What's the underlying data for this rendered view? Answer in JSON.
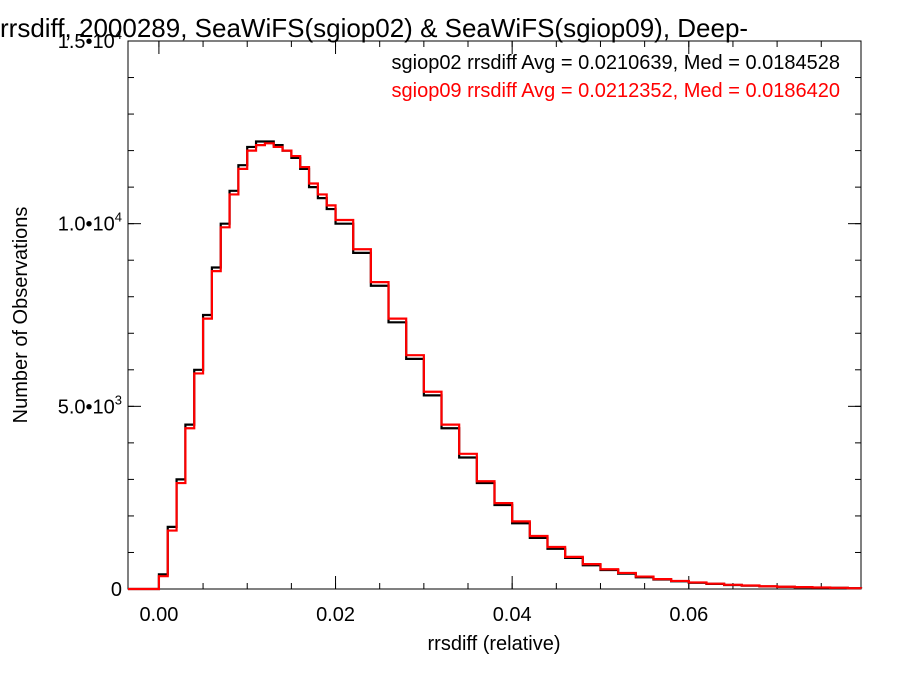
{
  "chart_data": {
    "type": "line",
    "step": true,
    "title": "rrsdiff, 2000289, SeaWiFS(sgiop02) & SeaWiFS(sgiop09), Deep-",
    "xlabel": "rrsdiff (relative)",
    "ylabel": "Number of Observations",
    "xlim": [
      -0.0035,
      0.0795
    ],
    "ylim": [
      0,
      15000
    ],
    "x_ticks": [
      {
        "value": 0.0,
        "label": "0.00"
      },
      {
        "value": 0.02,
        "label": "0.02"
      },
      {
        "value": 0.04,
        "label": "0.04"
      },
      {
        "value": 0.06,
        "label": "0.06"
      }
    ],
    "y_ticks": [
      {
        "value": 0,
        "mantissa": "0",
        "exp": ""
      },
      {
        "value": 5000,
        "mantissa": "5.0•10",
        "exp": "3"
      },
      {
        "value": 10000,
        "mantissa": "1.0•10",
        "exp": "4"
      },
      {
        "value": 15000,
        "mantissa": "1.5•10",
        "exp": "4"
      }
    ],
    "x_minor_step": 0.005,
    "y_minor_step": 1000,
    "grid": false,
    "legend_position": "top-right",
    "series": [
      {
        "name": "sgiop02 rrsdiff Avg = 0.0210639, Med = 0.0184528",
        "color": "#000000",
        "x": [
          -0.0035,
          -0.0001,
          0.0,
          0.001,
          0.002,
          0.003,
          0.004,
          0.005,
          0.006,
          0.007,
          0.008,
          0.009,
          0.01,
          0.011,
          0.012,
          0.013,
          0.014,
          0.015,
          0.016,
          0.017,
          0.018,
          0.019,
          0.02,
          0.022,
          0.024,
          0.026,
          0.028,
          0.03,
          0.032,
          0.034,
          0.036,
          0.038,
          0.04,
          0.042,
          0.044,
          0.046,
          0.048,
          0.05,
          0.052,
          0.054,
          0.056,
          0.058,
          0.06,
          0.062,
          0.064,
          0.066,
          0.068,
          0.07,
          0.072,
          0.074,
          0.076,
          0.078,
          0.0795
        ],
        "y": [
          0,
          0,
          400,
          1700,
          3000,
          4500,
          6000,
          7500,
          8800,
          10000,
          10900,
          11600,
          12100,
          12250,
          12250,
          12150,
          12000,
          11800,
          11500,
          11000,
          10700,
          10400,
          10000,
          9200,
          8300,
          7300,
          6300,
          5300,
          4400,
          3600,
          2900,
          2300,
          1800,
          1400,
          1100,
          850,
          650,
          520,
          420,
          320,
          260,
          210,
          170,
          140,
          110,
          90,
          70,
          60,
          50,
          40,
          30,
          20,
          15
        ]
      },
      {
        "name": "sgiop09 rrsdiff Avg = 0.0212352, Med = 0.0186420",
        "color": "#ff0000",
        "x": [
          -0.0035,
          -0.0001,
          0.0,
          0.001,
          0.002,
          0.003,
          0.004,
          0.005,
          0.006,
          0.007,
          0.008,
          0.009,
          0.01,
          0.011,
          0.012,
          0.013,
          0.014,
          0.015,
          0.016,
          0.017,
          0.018,
          0.019,
          0.02,
          0.022,
          0.024,
          0.026,
          0.028,
          0.03,
          0.032,
          0.034,
          0.036,
          0.038,
          0.04,
          0.042,
          0.044,
          0.046,
          0.048,
          0.05,
          0.052,
          0.054,
          0.056,
          0.058,
          0.06,
          0.062,
          0.064,
          0.066,
          0.068,
          0.07,
          0.072,
          0.074,
          0.076,
          0.078,
          0.0795
        ],
        "y": [
          0,
          0,
          350,
          1600,
          2900,
          4400,
          5900,
          7400,
          8700,
          9900,
          10800,
          11500,
          12000,
          12150,
          12200,
          12100,
          12000,
          11850,
          11550,
          11100,
          10800,
          10500,
          10100,
          9300,
          8400,
          7400,
          6400,
          5400,
          4500,
          3700,
          2950,
          2350,
          1850,
          1450,
          1150,
          880,
          680,
          540,
          440,
          340,
          270,
          220,
          180,
          145,
          115,
          95,
          75,
          62,
          52,
          42,
          32,
          22,
          16
        ]
      }
    ]
  }
}
